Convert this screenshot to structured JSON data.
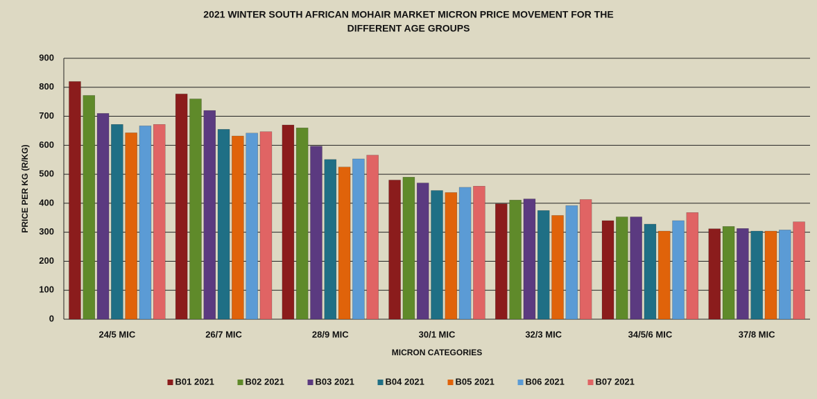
{
  "chart_data": {
    "type": "bar",
    "title": [
      "2021 WINTER SOUTH AFRICAN MOHAIR MARKET MICRON PRICE MOVEMENT FOR THE",
      "DIFFERENT AGE GROUPS"
    ],
    "x_label": "MICRON CATEGORIES",
    "y_label": "PRICE PER KG (R/KG)",
    "categories": [
      "24/5 MIC",
      "26/7 MIC",
      "28/9 MIC",
      "30/1 MIC",
      "32/3 MIC",
      "34/5/6 MIC",
      "37/8 MIC"
    ],
    "series": [
      {
        "name": "B01 2021",
        "color": "#8b1c1c",
        "values": [
          820,
          777,
          670,
          480,
          398,
          340,
          312
        ]
      },
      {
        "name": "B02 2021",
        "color": "#5f8a2a",
        "values": [
          772,
          760,
          660,
          490,
          411,
          353,
          320
        ]
      },
      {
        "name": "B03 2021",
        "color": "#5b3a80",
        "values": [
          710,
          720,
          597,
          470,
          415,
          353,
          313
        ]
      },
      {
        "name": "B04 2021",
        "color": "#1f6f85",
        "values": [
          672,
          655,
          551,
          444,
          375,
          328,
          304
        ]
      },
      {
        "name": "B05 2021",
        "color": "#e0630a",
        "values": [
          643,
          632,
          525,
          437,
          358,
          304,
          304
        ]
      },
      {
        "name": "B06 2021",
        "color": "#5b9bd5",
        "values": [
          667,
          642,
          553,
          455,
          392,
          340,
          308
        ]
      },
      {
        "name": "B07 2021",
        "color": "#e06464",
        "values": [
          672,
          647,
          566,
          459,
          413,
          368,
          336
        ]
      }
    ],
    "ylim": [
      0,
      900
    ],
    "yticks": [
      0,
      100,
      200,
      300,
      400,
      500,
      600,
      700,
      800,
      900
    ],
    "grid": true,
    "legend": "bottom"
  }
}
